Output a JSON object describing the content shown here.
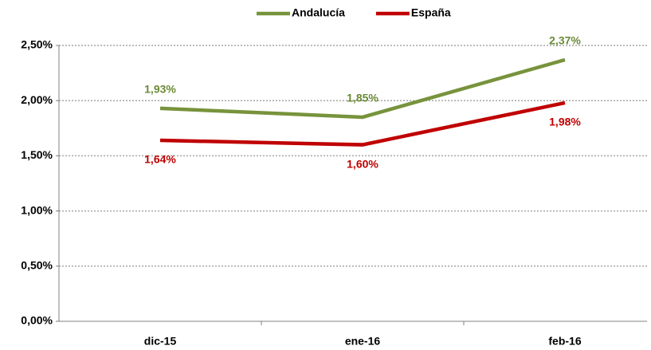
{
  "chart_data": {
    "type": "line",
    "categories": [
      "dic-15",
      "ene-16",
      "feb-16"
    ],
    "series": [
      {
        "name": "Andalucía",
        "color": "#77933c",
        "label_color": "#6b8a35",
        "values": [
          1.93,
          1.85,
          2.37
        ],
        "value_labels": [
          "1,93%",
          "1,85%",
          "2,37%"
        ]
      },
      {
        "name": "España",
        "color": "#c00000",
        "label_color": "#c00000",
        "values": [
          1.64,
          1.6,
          1.98
        ],
        "value_labels": [
          "1,64%",
          "1,60%",
          "1,98%"
        ]
      }
    ],
    "ylim": [
      0,
      2.5
    ],
    "yticks": [
      {
        "value": 0,
        "label": "0,00%"
      },
      {
        "value": 0.5,
        "label": "0,50%"
      },
      {
        "value": 1,
        "label": "1,00%"
      },
      {
        "value": 1.5,
        "label": "1,50%"
      },
      {
        "value": 2,
        "label": "2,00%"
      },
      {
        "value": 2.5,
        "label": "2,50%"
      }
    ],
    "grid": true,
    "legend": "top"
  }
}
